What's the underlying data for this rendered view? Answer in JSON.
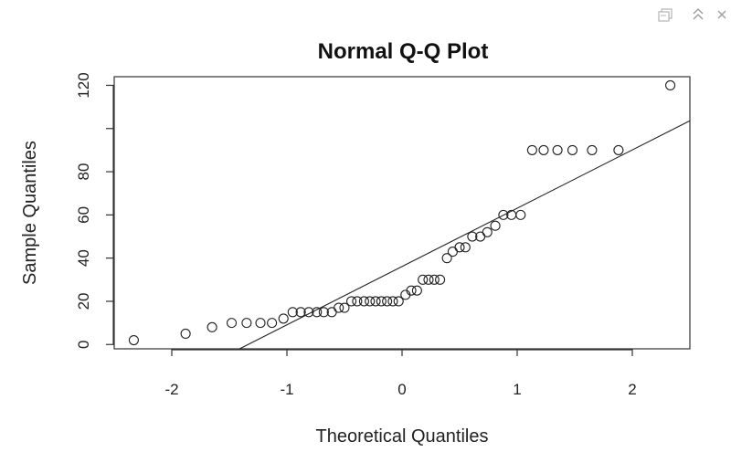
{
  "toolbar": {
    "icons": [
      "popout-icon",
      "collapse-icon",
      "close-icon"
    ]
  },
  "chart_data": {
    "type": "scatter",
    "title": "Normal Q-Q Plot",
    "xlabel": "Theoretical Quantiles",
    "ylabel": "Sample Quantiles",
    "xlim": [
      -2.5,
      2.5
    ],
    "ylim": [
      -2,
      124
    ],
    "x_ticks": [
      -2,
      -1,
      0,
      1,
      2
    ],
    "x_tick_labels": [
      "-2",
      "-1",
      "0",
      "1",
      "2"
    ],
    "y_ticks": [
      0,
      20,
      40,
      60,
      80,
      100,
      120
    ],
    "y_tick_labels": [
      "0",
      "20",
      "40",
      "60",
      "80",
      "",
      "120"
    ],
    "grid": false,
    "series": [
      {
        "x": [
          -2.33,
          -1.88,
          -1.65,
          -1.48,
          -1.35,
          -1.23,
          -1.13,
          -1.03,
          -0.95,
          -0.88,
          -0.81,
          -0.74,
          -0.68,
          -0.61,
          -0.55,
          -0.5,
          -0.44,
          -0.39,
          -0.33,
          -0.28,
          -0.23,
          -0.18,
          -0.13,
          -0.08,
          -0.03,
          0.03,
          0.08,
          0.13,
          0.18,
          0.23,
          0.28,
          0.33,
          0.39,
          0.44,
          0.5,
          0.55,
          0.61,
          0.68,
          0.74,
          0.81,
          0.88,
          0.95,
          1.03,
          1.13,
          1.23,
          1.35,
          1.48,
          1.65,
          1.88,
          2.33
        ],
        "y": [
          2,
          5,
          8,
          10,
          10,
          10,
          10,
          12,
          15,
          15,
          15,
          15,
          15,
          15,
          17,
          17,
          20,
          20,
          20,
          20,
          20,
          20,
          20,
          20,
          20,
          23,
          25,
          25,
          30,
          30,
          30,
          30,
          40,
          43,
          45,
          45,
          50,
          50,
          52,
          55,
          60,
          60,
          60,
          90,
          90,
          90,
          90,
          90,
          90,
          120
        ]
      }
    ],
    "reference_line": {
      "intercept": 36.1,
      "slope": 27.0
    }
  }
}
